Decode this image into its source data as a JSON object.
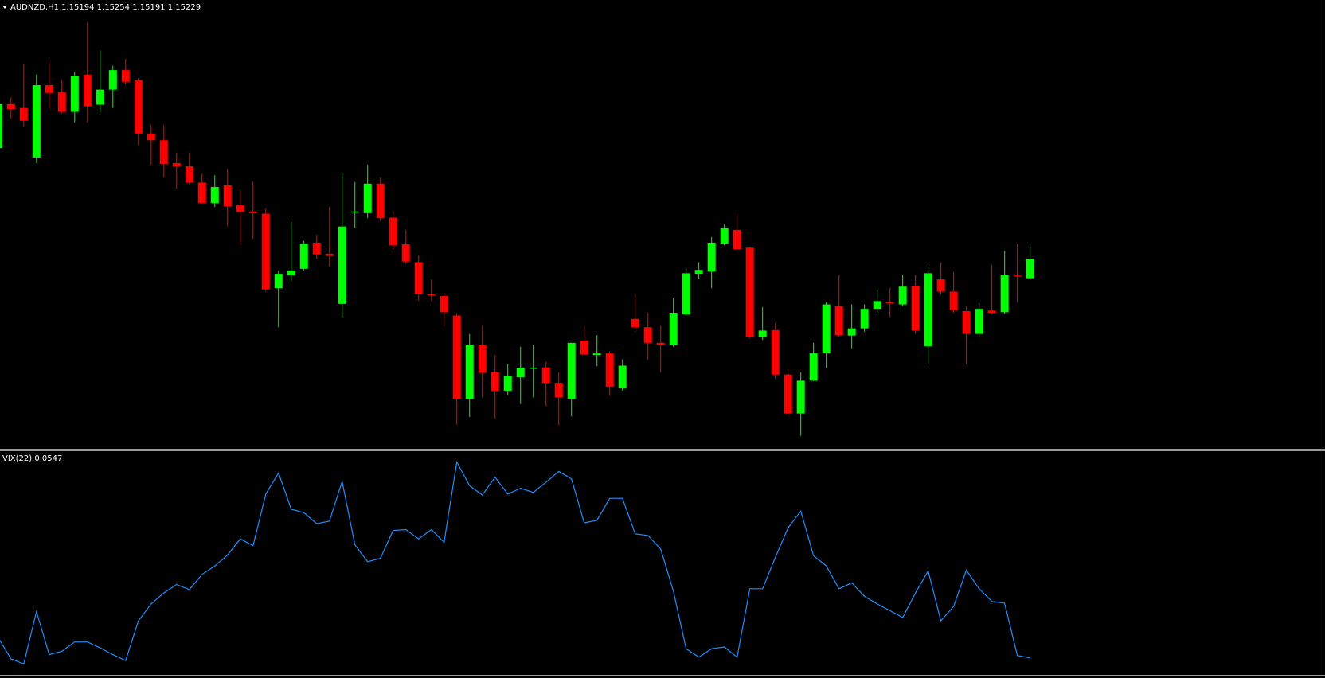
{
  "chart_data": [
    {
      "type": "candlestick",
      "title": "AUDNZD,H1 1.15194 1.15254 1.15191 1.15229",
      "open": [
        1.15428,
        1.15507,
        1.155,
        1.15411,
        1.15541,
        1.15528,
        1.15493,
        1.1556,
        1.15506,
        1.15533,
        1.15568,
        1.1555,
        1.15454,
        1.15442,
        1.15401,
        1.15395,
        1.15366,
        1.15329,
        1.15361,
        1.15325,
        1.15314,
        1.1531,
        1.15176,
        1.15199,
        1.15211,
        1.15258,
        1.15238,
        1.15148,
        1.15313,
        1.15311,
        1.15364,
        1.15303,
        1.15255,
        1.15223,
        1.15165,
        1.15162,
        1.15127,
        1.14977,
        1.15075,
        1.15025,
        1.14992,
        1.15016,
        1.15033,
        1.15034,
        1.15006,
        1.14977,
        1.15082,
        1.15056,
        1.15059,
        1.14996,
        1.15121,
        1.15106,
        1.15078,
        1.15074,
        1.15129,
        1.15202,
        1.15206,
        1.15256,
        1.15281,
        1.15249,
        1.15088,
        1.15101,
        1.15021,
        1.14951,
        1.1501,
        1.15059,
        1.15144,
        1.15091,
        1.15104,
        1.15139,
        1.15151,
        1.15147,
        1.1518,
        1.15072,
        1.15192,
        1.1517,
        1.15135,
        1.15094,
        1.15136,
        1.15133,
        1.15199,
        1.15194
      ],
      "high": [
        1.15527,
        1.15519,
        1.1558,
        1.1556,
        1.15583,
        1.1555,
        1.15565,
        1.15653,
        1.15603,
        1.15576,
        1.15588,
        1.15554,
        1.15469,
        1.15469,
        1.1542,
        1.1542,
        1.15382,
        1.15379,
        1.1539,
        1.15352,
        1.15367,
        1.15319,
        1.15208,
        1.15296,
        1.15261,
        1.15272,
        1.15322,
        1.15382,
        1.15367,
        1.15398,
        1.15375,
        1.15314,
        1.15281,
        1.15235,
        1.15192,
        1.15167,
        1.15132,
        1.15094,
        1.15109,
        1.15056,
        1.1504,
        1.15071,
        1.15075,
        1.15044,
        1.15025,
        1.15078,
        1.15109,
        1.15092,
        1.15063,
        1.15048,
        1.15165,
        1.15132,
        1.15109,
        1.15158,
        1.15211,
        1.15223,
        1.15268,
        1.15291,
        1.1531,
        1.1525,
        1.15142,
        1.15113,
        1.1503,
        1.15025,
        1.15078,
        1.15151,
        1.152,
        1.15147,
        1.15147,
        1.15174,
        1.15177,
        1.152,
        1.152,
        1.15215,
        1.15223,
        1.15205,
        1.15144,
        1.1515,
        1.15218,
        1.15243,
        1.15256,
        1.15254
      ],
      "low": [
        1.15428,
        1.15481,
        1.15466,
        1.15401,
        1.15496,
        1.1549,
        1.15474,
        1.15474,
        1.15492,
        1.155,
        1.15542,
        1.15433,
        1.15398,
        1.15375,
        1.15355,
        1.15363,
        1.15329,
        1.15322,
        1.15287,
        1.15253,
        1.15265,
        1.1517,
        1.15106,
        1.15188,
        1.15208,
        1.15229,
        1.15215,
        1.15123,
        1.15284,
        1.15302,
        1.15296,
        1.15246,
        1.1522,
        1.15154,
        1.15154,
        1.15109,
        1.14931,
        1.14945,
        1.1498,
        1.14942,
        1.14984,
        1.14968,
        1.1498,
        1.14964,
        1.1493,
        1.14946,
        1.15056,
        1.15036,
        1.14983,
        1.14992,
        1.15098,
        1.15048,
        1.15025,
        1.15071,
        1.15127,
        1.15192,
        1.15176,
        1.15253,
        1.15246,
        1.15086,
        1.15083,
        1.15013,
        1.14945,
        1.14911,
        1.15009,
        1.15033,
        1.15089,
        1.15068,
        1.15098,
        1.15132,
        1.15124,
        1.15144,
        1.15094,
        1.1504,
        1.15165,
        1.15132,
        1.1504,
        1.15089,
        1.15129,
        1.1513,
        1.15151,
        1.15191
      ],
      "close": [
        1.15507,
        1.15498,
        1.15477,
        1.15541,
        1.15527,
        1.15493,
        1.15557,
        1.15503,
        1.15533,
        1.15568,
        1.15547,
        1.15454,
        1.15442,
        1.15399,
        1.15395,
        1.15366,
        1.15329,
        1.15358,
        1.15323,
        1.15313,
        1.15311,
        1.15174,
        1.15202,
        1.15208,
        1.15256,
        1.15237,
        1.15234,
        1.15287,
        1.15314,
        1.15364,
        1.15302,
        1.15253,
        1.15224,
        1.15165,
        1.15164,
        1.15133,
        1.14977,
        1.15075,
        1.15024,
        1.14992,
        1.15019,
        1.15033,
        1.15033,
        1.15006,
        1.1498,
        1.15078,
        1.15057,
        1.15059,
        1.14999,
        1.15037,
        1.15106,
        1.15078,
        1.15074,
        1.15132,
        1.15203,
        1.15209,
        1.15258,
        1.15284,
        1.15246,
        1.15088,
        1.151,
        1.15021,
        1.14951,
        1.1501,
        1.15059,
        1.15147,
        1.15092,
        1.15104,
        1.15139,
        1.15153,
        1.1515,
        1.15179,
        1.151,
        1.15203,
        1.1517,
        1.15136,
        1.15094,
        1.15139,
        1.15132,
        1.152,
        1.15197,
        1.15229
      ],
      "up_color": "#00ff00",
      "down_color": "#ff0000",
      "ylim": [
        1.14889,
        1.15694
      ]
    },
    {
      "type": "line",
      "title": "VIX(22) 0.0547",
      "series": [
        {
          "color": "#1e90ff",
          "values": [
            0.0787,
            0.0537,
            0.0477,
            0.1097,
            0.0587,
            0.0627,
            0.0737,
            0.0737,
            0.0667,
            0.0587,
            0.0517,
            0.0987,
            0.1187,
            0.1317,
            0.1417,
            0.1357,
            0.1537,
            0.1637,
            0.1767,
            0.1957,
            0.1877,
            0.2487,
            0.2737,
            0.2307,
            0.2267,
            0.2137,
            0.2167,
            0.2637,
            0.1887,
            0.1687,
            0.1727,
            0.2057,
            0.2067,
            0.1957,
            0.2067,
            0.1917,
            0.2867,
            0.2587,
            0.2477,
            0.2687,
            0.2487,
            0.2557,
            0.2507,
            0.2627,
            0.2757,
            0.2667,
            0.2147,
            0.2177,
            0.2437,
            0.2437,
            0.2017,
            0.1997,
            0.1837,
            0.1337,
            0.0657,
            0.0557,
            0.0657,
            0.0677,
            0.0557,
            0.1367,
            0.1367,
            0.1737,
            0.2087,
            0.2287,
            0.1757,
            0.1637,
            0.1367,
            0.1437,
            0.1277,
            0.1187,
            0.1107,
            0.1027,
            0.1317,
            0.1577,
            0.0987,
            0.1157,
            0.1587,
            0.1367,
            0.1217,
            0.1197,
            0.0577,
            0.0547
          ]
        }
      ],
      "ylim": [
        0.0357,
        0.2967
      ]
    }
  ]
}
